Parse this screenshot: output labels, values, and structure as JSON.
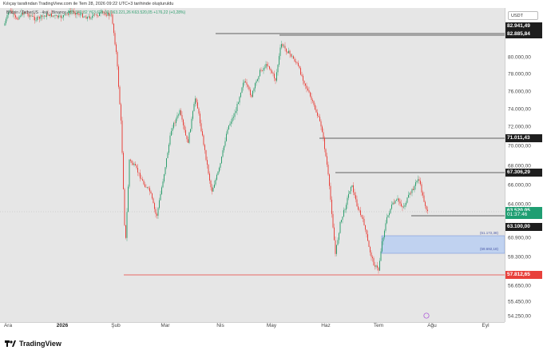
{
  "caption": "Kılıçay tarafından TradingView.com ile Tem 28, 2026 09:22 UTC+3 tarihinde oluşturuldu",
  "legend": {
    "symbol": "Bitcoin / TetherUS · 4sa · Binance",
    "ohlc": "A63.342,82  Y63.621,00  D63.221,26  K63.520,05  +176,22 (+0,28%)"
  },
  "currency": "USDT",
  "price_ticks": [
    "80.000,00",
    "78.000,00",
    "76.000,00",
    "74.000,00",
    "72.000,00",
    "70.000,00",
    "68.000,00",
    "66.000,00",
    "64.000,00",
    "60.900,00",
    "59.300,00",
    "56.650,00",
    "55.450,00",
    "54.250,00"
  ],
  "price_labels": [
    {
      "text": "82.941,49",
      "style": "dark",
      "price": 82941.49
    },
    {
      "text": "82.885,84",
      "style": "dark",
      "price": 82885.84
    },
    {
      "text": "71.011,43",
      "style": "dark",
      "price": 71011.43
    },
    {
      "text": "67.306,29",
      "style": "dark",
      "price": 67306.29
    },
    {
      "text": "63.520,05",
      "style": "green",
      "price": 63520.05
    },
    {
      "text": "63.100,00",
      "style": "dark",
      "price": 63100.0
    },
    {
      "text": "57.812,65",
      "style": "red",
      "price": 57812.65
    }
  ],
  "countdown": "01:37:46",
  "zone": {
    "top_label": "(61.172,38)",
    "bottom_label": "(59.692,18)"
  },
  "time_labels": [
    {
      "text": "Ara",
      "bold": false
    },
    {
      "text": "2026",
      "bold": true
    },
    {
      "text": "Şub",
      "bold": false
    },
    {
      "text": "Mar",
      "bold": false
    },
    {
      "text": "Nis",
      "bold": false
    },
    {
      "text": "May",
      "bold": false
    },
    {
      "text": "Haz",
      "bold": false
    },
    {
      "text": "Tem",
      "bold": false
    },
    {
      "text": "Ağu",
      "bold": false
    },
    {
      "text": "Eyl",
      "bold": false
    }
  ],
  "brand": "TradingView",
  "colors": {
    "up": "#2e9e6e",
    "down": "#e8413b",
    "dark": "#1e1e1e",
    "zone": "#bcd0f2"
  }
}
